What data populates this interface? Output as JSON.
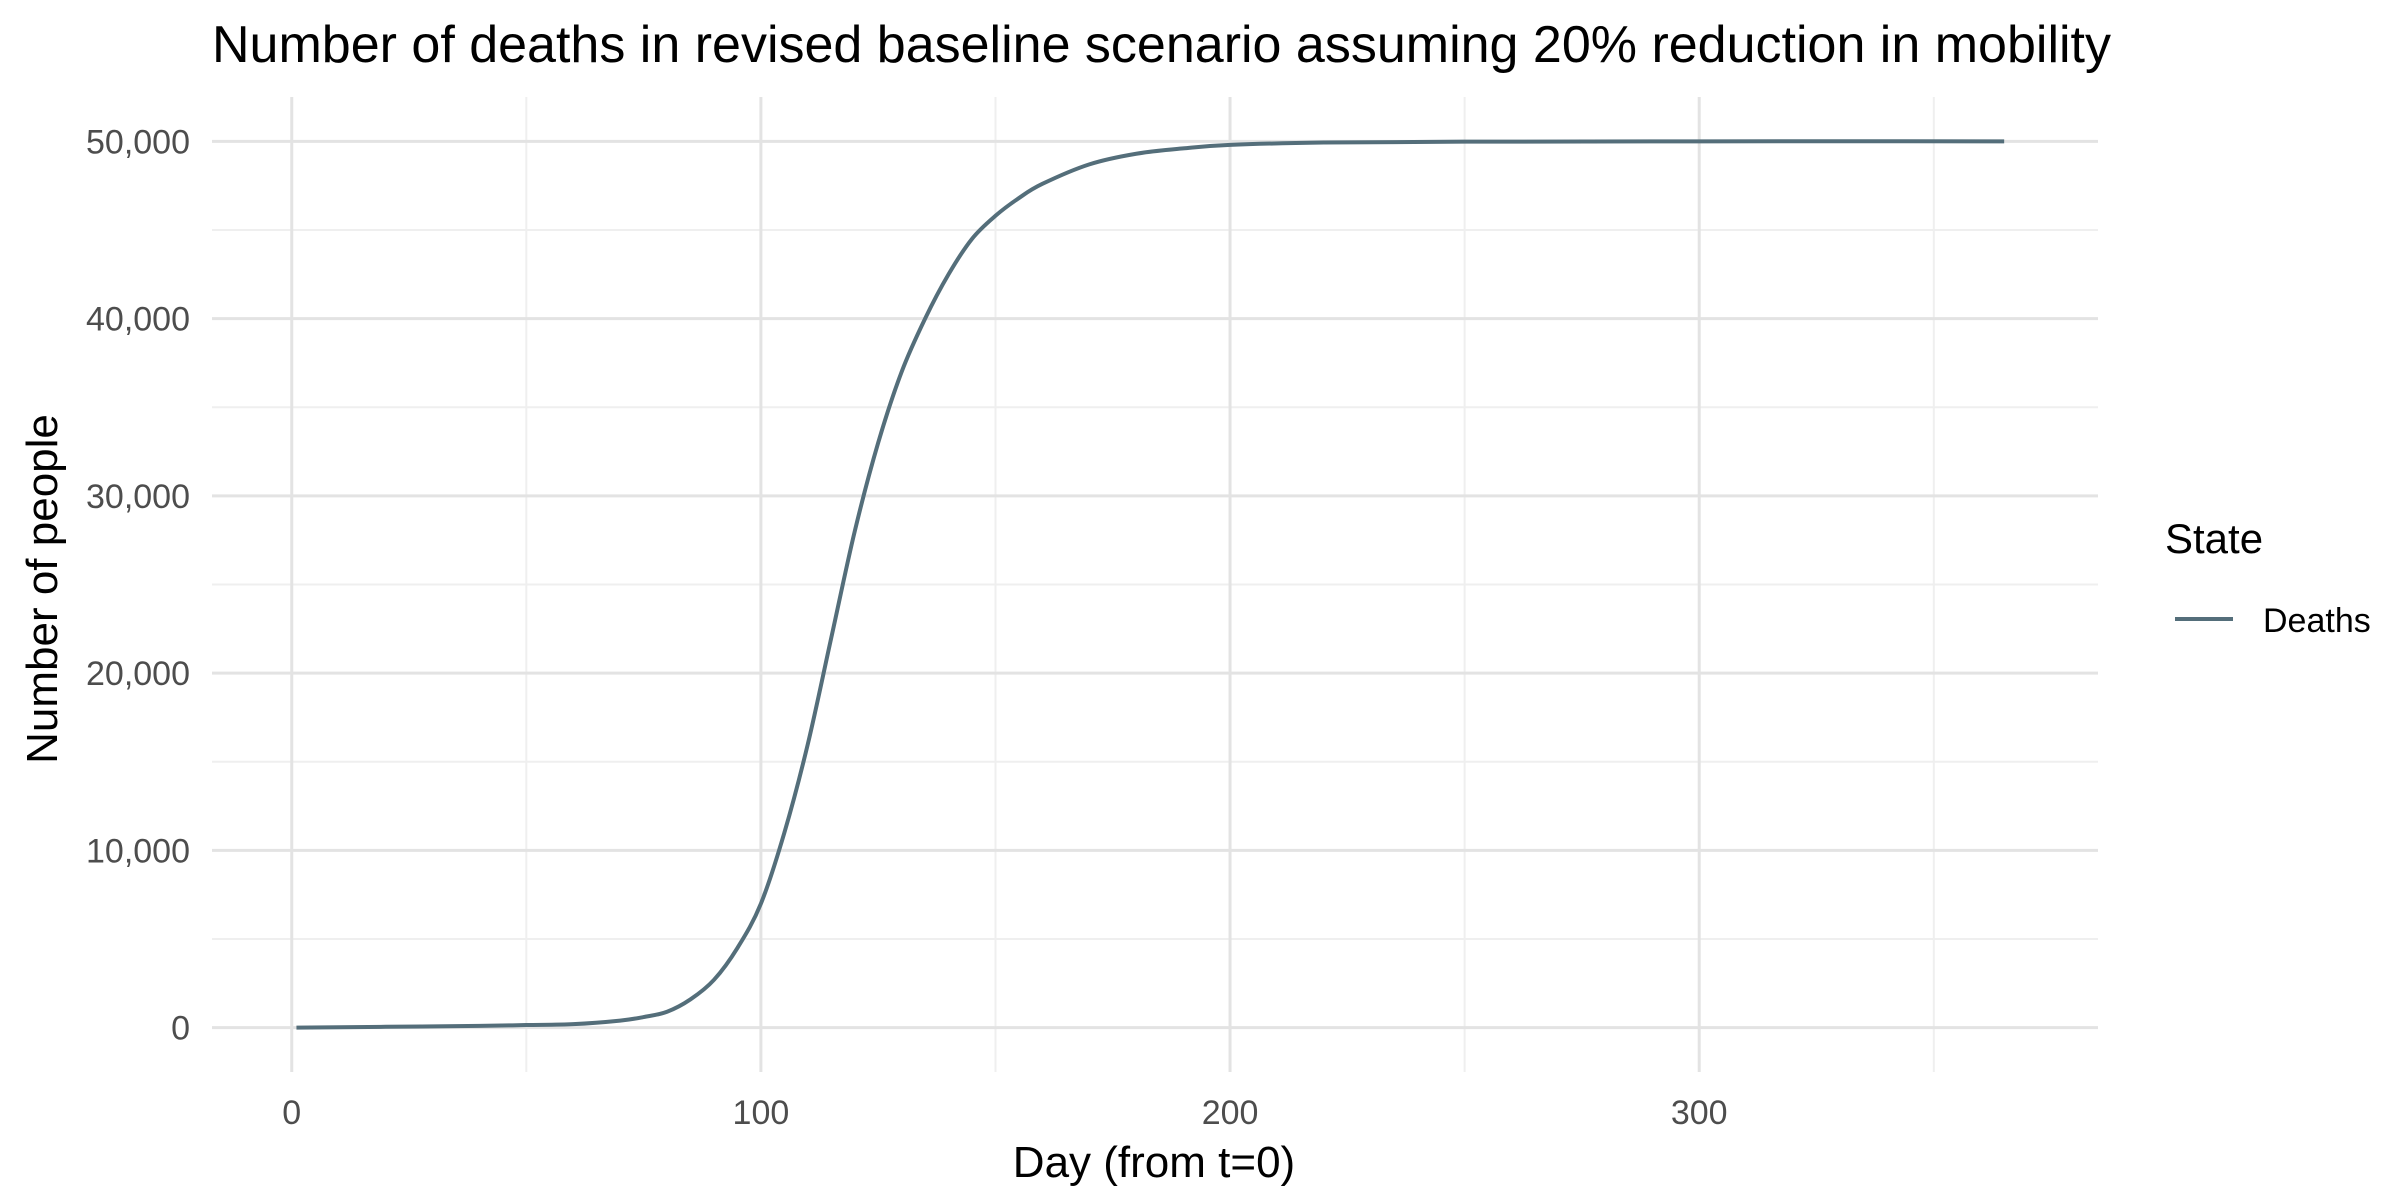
{
  "chart_data": {
    "type": "line",
    "title": "Number of deaths in revised baseline scenario assuming 20% reduction in mobility",
    "xlabel": "Day (from t=0)",
    "ylabel": "Number of people",
    "xlim": [
      -17,
      385
    ],
    "ylim": [
      -2500,
      52500
    ],
    "x_ticks": [
      0,
      100,
      200,
      300
    ],
    "x_tick_labels": [
      "0",
      "100",
      "200",
      "300"
    ],
    "x_minor_ticks": [
      50,
      150,
      250,
      350
    ],
    "y_ticks": [
      0,
      10000,
      20000,
      30000,
      40000,
      50000
    ],
    "y_tick_labels": [
      "0",
      "10,000",
      "20,000",
      "30,000",
      "40,000",
      "50,000"
    ],
    "y_minor_ticks": [
      5000,
      15000,
      25000,
      35000,
      45000
    ],
    "grid": true,
    "legend": {
      "title": "State",
      "position": "right"
    },
    "series": [
      {
        "name": "Deaths",
        "color": "#546E7A",
        "x": [
          1,
          20,
          40,
          50,
          60,
          70,
          75,
          80,
          85,
          90,
          95,
          100,
          105,
          110,
          115,
          120,
          125,
          130,
          135,
          140,
          145,
          150,
          155,
          160,
          170,
          180,
          190,
          200,
          220,
          250,
          300,
          365
        ],
        "values": [
          0,
          50,
          100,
          150,
          200,
          400,
          600,
          900,
          1600,
          2700,
          4500,
          7000,
          11000,
          16000,
          22000,
          28000,
          33000,
          37000,
          40000,
          42500,
          44500,
          45800,
          46800,
          47600,
          48700,
          49300,
          49600,
          49800,
          49930,
          49980,
          50000,
          50000
        ]
      }
    ]
  }
}
